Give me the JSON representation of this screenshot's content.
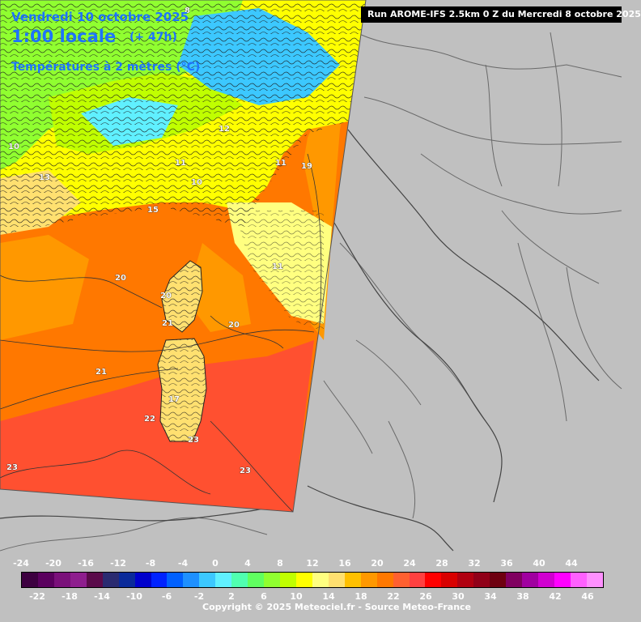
{
  "header": {
    "date": "Vendredi 10 octobre 2025",
    "time": "1:00 locale",
    "offset": "(+ 47h)",
    "variable": "Températures à 2 mètres (°C)"
  },
  "run_info": "Run AROME-IFS 2.5km 0 Z du Mercredi 8 octobre 2025",
  "copyright": "Copyright © 2025 Meteociel.fr - Source Meteo-France",
  "temperature_labels": [
    {
      "value": "8"
    },
    {
      "value": "10"
    },
    {
      "value": "10"
    },
    {
      "value": "11"
    },
    {
      "value": "11"
    },
    {
      "value": "12"
    },
    {
      "value": "13"
    },
    {
      "value": "15"
    },
    {
      "value": "19"
    },
    {
      "value": "20"
    },
    {
      "value": "20"
    },
    {
      "value": "21"
    },
    {
      "value": "21"
    },
    {
      "value": "22"
    },
    {
      "value": "23"
    },
    {
      "value": "23"
    },
    {
      "value": "23"
    },
    {
      "value": "11"
    },
    {
      "value": "17"
    },
    {
      "value": "20"
    }
  ],
  "legend": {
    "top_labels": [
      "-24",
      "-20",
      "-16",
      "-12",
      "-8",
      "-4",
      "0",
      "4",
      "8",
      "12",
      "16",
      "20",
      "24",
      "28",
      "32",
      "36",
      "40",
      "44"
    ],
    "bottom_labels": [
      "-22",
      "-18",
      "-14",
      "-10",
      "-6",
      "-2",
      "2",
      "6",
      "10",
      "14",
      "18",
      "22",
      "26",
      "30",
      "34",
      "38",
      "42",
      "46"
    ],
    "colors": [
      "#3d0040",
      "#5a005e",
      "#7a107a",
      "#8e1e8e",
      "#5a0a4a",
      "#2a2a70",
      "#0a2a9a",
      "#0000cc",
      "#0022ff",
      "#0060ff",
      "#1e90ff",
      "#3cc8ff",
      "#60f0ff",
      "#50ffb0",
      "#60ff60",
      "#90ff30",
      "#c0ff00",
      "#ffff00",
      "#ffff80",
      "#ffe070",
      "#ffc000",
      "#ff9800",
      "#ff7800",
      "#ff6030",
      "#ff4040",
      "#ff0000",
      "#d80000",
      "#b00010",
      "#900018",
      "#6e0010",
      "#800060",
      "#a000a0",
      "#d000d0",
      "#ff00ff",
      "#ff60ff",
      "#ff90ff"
    ]
  }
}
